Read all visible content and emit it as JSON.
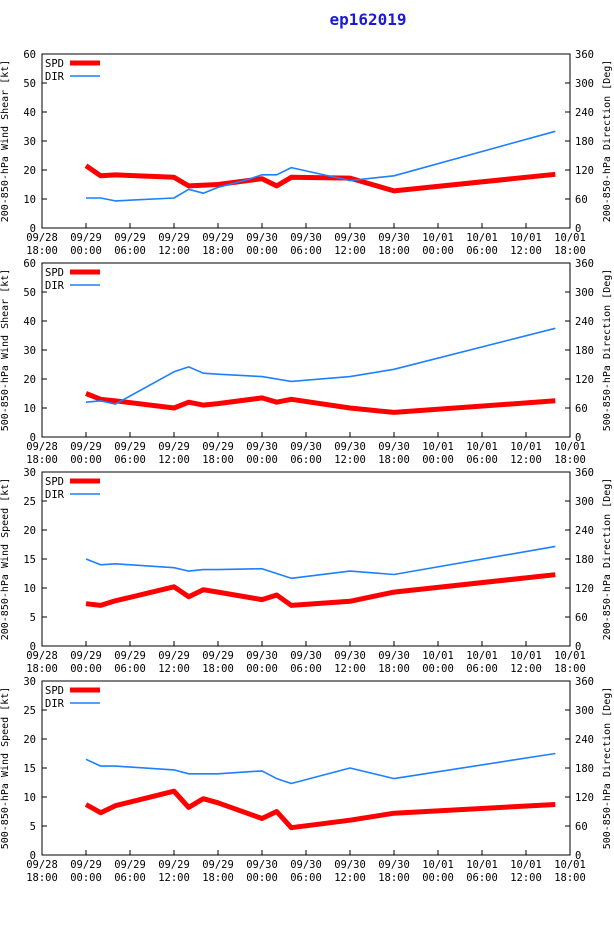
{
  "title": "ep162019",
  "colors": {
    "spd": "#ff0000",
    "dir": "#1e7fff",
    "axis": "#000000",
    "title": "#1a1adb"
  },
  "x_ticks": [
    {
      "t": 0,
      "l1": "09/28",
      "l2": "18:00"
    },
    {
      "t": 6,
      "l1": "09/29",
      "l2": "00:00"
    },
    {
      "t": 12,
      "l1": "09/29",
      "l2": "06:00"
    },
    {
      "t": 18,
      "l1": "09/29",
      "l2": "12:00"
    },
    {
      "t": 24,
      "l1": "09/29",
      "l2": "18:00"
    },
    {
      "t": 30,
      "l1": "09/30",
      "l2": "00:00"
    },
    {
      "t": 36,
      "l1": "09/30",
      "l2": "06:00"
    },
    {
      "t": 42,
      "l1": "09/30",
      "l2": "12:00"
    },
    {
      "t": 48,
      "l1": "09/30",
      "l2": "18:00"
    },
    {
      "t": 54,
      "l1": "10/01",
      "l2": "00:00"
    },
    {
      "t": 60,
      "l1": "10/01",
      "l2": "06:00"
    },
    {
      "t": 66,
      "l1": "10/01",
      "l2": "12:00"
    },
    {
      "t": 72,
      "l1": "10/01",
      "l2": "18:00"
    }
  ],
  "legend": {
    "spd": "SPD",
    "dir": "DIR"
  },
  "chart_data": [
    {
      "type": "line",
      "ylabel": "200-850-hPa Wind Shear [kt]",
      "y2label": "200-850-hPa Direction [Deg]",
      "ylim": [
        0,
        60
      ],
      "y_ticks": [
        0,
        10,
        20,
        30,
        40,
        50,
        60
      ],
      "y2lim": [
        0,
        360
      ],
      "y2_ticks": [
        0,
        60,
        120,
        180,
        240,
        300,
        360
      ],
      "series": [
        {
          "name": "SPD",
          "axis": "left",
          "x": [
            6,
            8,
            10,
            18,
            20,
            24,
            30,
            32,
            34,
            42,
            48,
            70
          ],
          "y": [
            21.5,
            18,
            18.3,
            17.5,
            14.5,
            15,
            17,
            14.5,
            17.5,
            17.2,
            12.8,
            18.5
          ]
        },
        {
          "name": "DIR",
          "axis": "right",
          "x": [
            6,
            8,
            10,
            18,
            20,
            22,
            24,
            28,
            30,
            32,
            34,
            42,
            48,
            70
          ],
          "y": [
            62,
            62,
            56,
            62,
            80,
            72,
            84,
            100,
            110,
            110,
            125,
            98,
            108,
            200
          ]
        }
      ]
    },
    {
      "type": "line",
      "ylabel": "500-850-hPa Wind Shear [kt]",
      "y2label": "500-850-hPa Direction [Deg]",
      "ylim": [
        0,
        60
      ],
      "y_ticks": [
        0,
        10,
        20,
        30,
        40,
        50,
        60
      ],
      "y2lim": [
        0,
        360
      ],
      "y2_ticks": [
        0,
        60,
        120,
        180,
        240,
        300,
        360
      ],
      "series": [
        {
          "name": "SPD",
          "axis": "left",
          "x": [
            6,
            8,
            10,
            18,
            20,
            22,
            24,
            30,
            32,
            34,
            42,
            48,
            70
          ],
          "y": [
            15,
            13,
            12.5,
            10,
            12,
            11,
            11.5,
            13.5,
            12,
            13,
            10,
            8.5,
            12.5
          ]
        },
        {
          "name": "DIR",
          "axis": "right",
          "x": [
            6,
            8,
            10,
            18,
            20,
            22,
            24,
            30,
            34,
            42,
            48,
            70
          ],
          "y": [
            72,
            75,
            68,
            135,
            145,
            132,
            130,
            125,
            115,
            125,
            140,
            225
          ]
        }
      ]
    },
    {
      "type": "line",
      "ylabel": "200-850-hPa Wind Speed [kt]",
      "y2label": "200-850-hPa Direction [Deg]",
      "ylim": [
        0,
        30
      ],
      "y_ticks": [
        0,
        5,
        10,
        15,
        20,
        25,
        30
      ],
      "y2lim": [
        0,
        360
      ],
      "y2_ticks": [
        0,
        60,
        120,
        180,
        240,
        300,
        360
      ],
      "series": [
        {
          "name": "SPD",
          "axis": "left",
          "x": [
            6,
            8,
            10,
            18,
            20,
            22,
            24,
            30,
            32,
            34,
            42,
            48,
            70
          ],
          "y": [
            7.3,
            7,
            7.8,
            10.2,
            8.5,
            9.7,
            9.3,
            8,
            8.8,
            7,
            7.7,
            9.3,
            12.3
          ]
        },
        {
          "name": "DIR",
          "axis": "right",
          "x": [
            6,
            8,
            10,
            18,
            20,
            22,
            24,
            30,
            34,
            42,
            48,
            70
          ],
          "y": [
            180,
            168,
            170,
            162,
            155,
            158,
            158,
            160,
            140,
            155,
            148,
            206
          ]
        }
      ]
    },
    {
      "type": "line",
      "ylabel": "500-850-hPa Wind Speed [kt]",
      "y2label": "500-850-hPa Direction [Deg]",
      "ylim": [
        0,
        30
      ],
      "y_ticks": [
        0,
        5,
        10,
        15,
        20,
        25,
        30
      ],
      "y2lim": [
        0,
        360
      ],
      "y2_ticks": [
        0,
        60,
        120,
        180,
        240,
        300,
        360
      ],
      "series": [
        {
          "name": "SPD",
          "axis": "left",
          "x": [
            6,
            8,
            10,
            18,
            20,
            22,
            24,
            30,
            32,
            34,
            42,
            48,
            70
          ],
          "y": [
            8.7,
            7.3,
            8.5,
            11,
            8.2,
            9.7,
            9,
            6.3,
            7.5,
            4.7,
            6,
            7.2,
            8.7
          ]
        },
        {
          "name": "DIR",
          "axis": "right",
          "x": [
            6,
            8,
            10,
            18,
            20,
            24,
            30,
            32,
            34,
            42,
            48,
            70
          ],
          "y": [
            198,
            184,
            184,
            176,
            168,
            168,
            174,
            158,
            148,
            180,
            158,
            210
          ]
        }
      ]
    }
  ]
}
